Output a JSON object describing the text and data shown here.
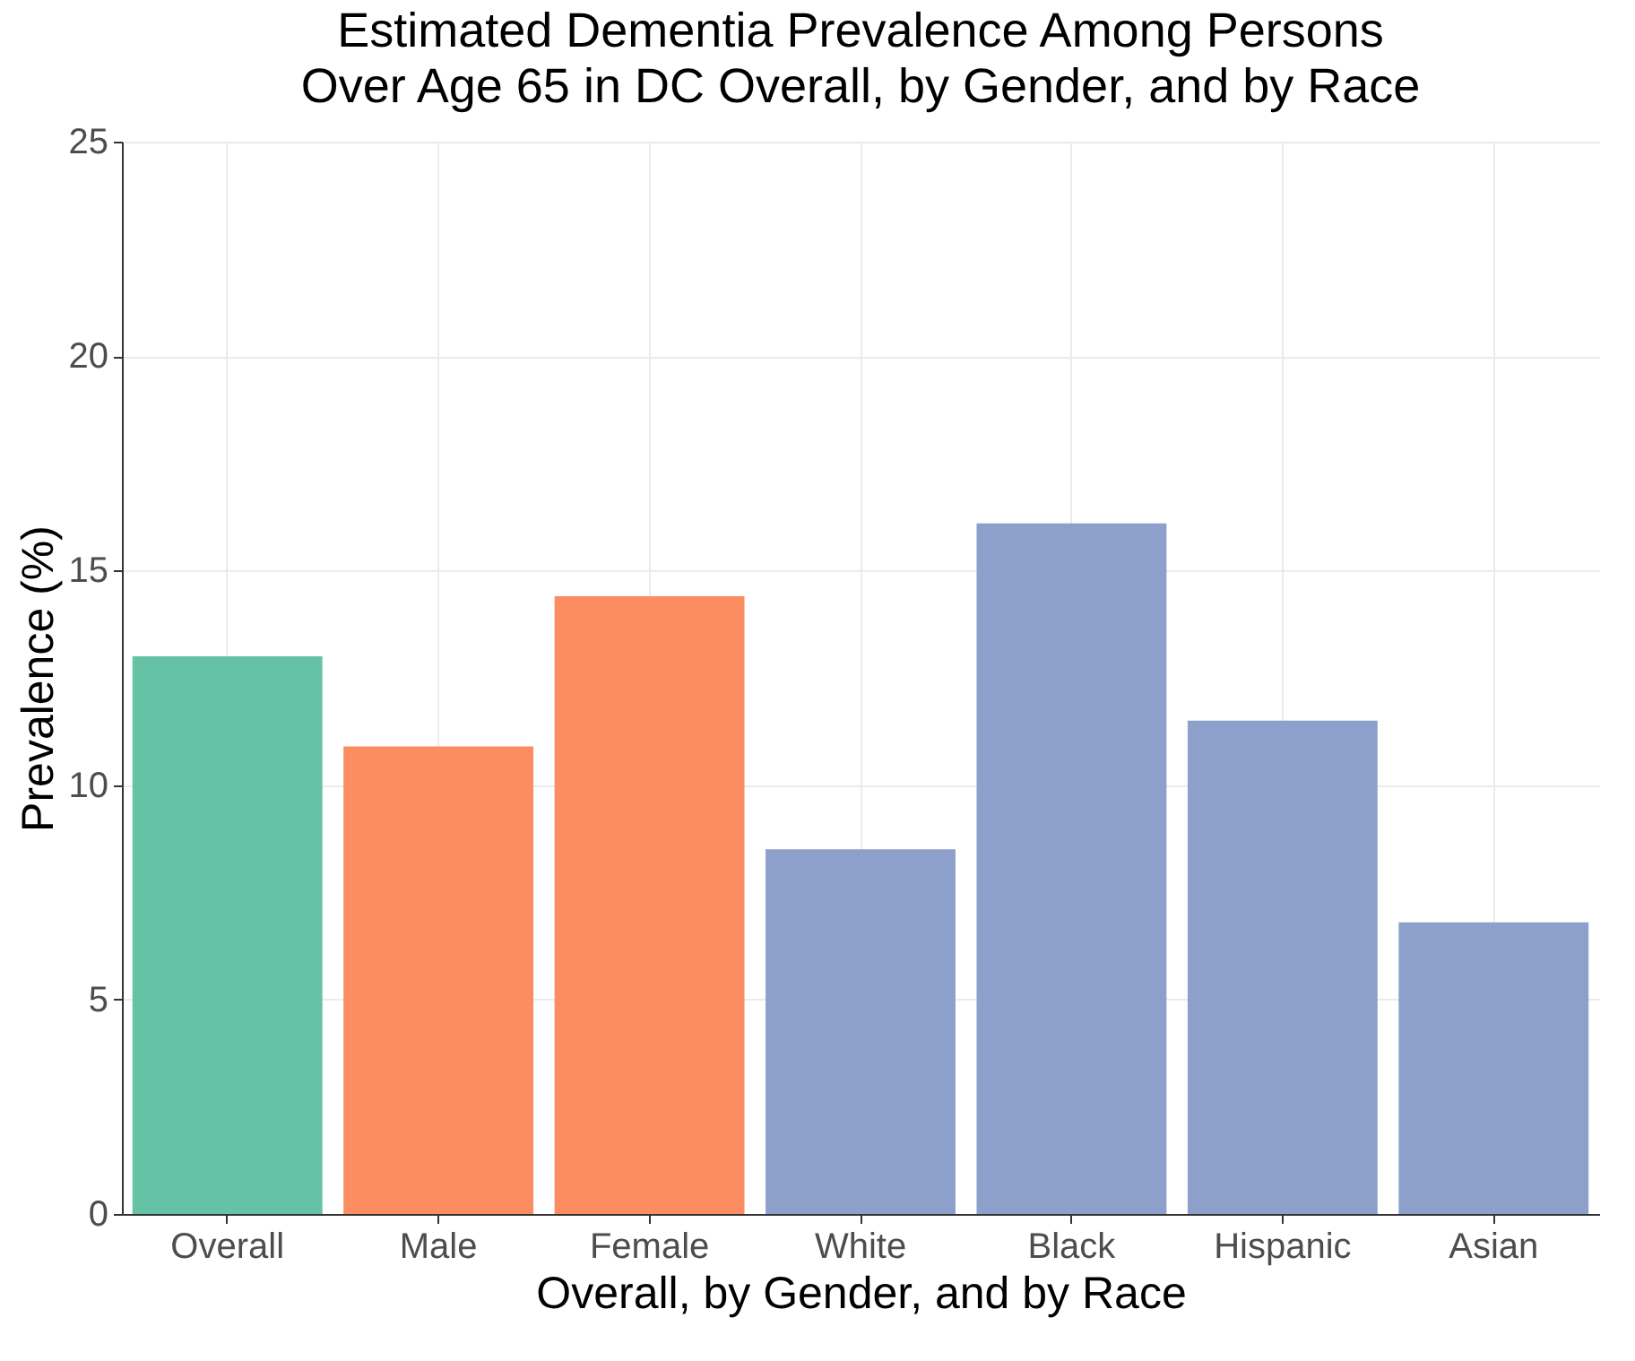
{
  "chart_data": {
    "type": "bar",
    "title": "Estimated Dementia Prevalence Among Persons\nOver Age 65 in DC Overall, by Gender, and by Race",
    "xlabel": "Overall, by Gender, and by Race",
    "ylabel": "Prevalence (%)",
    "categories": [
      "Overall",
      "Male",
      "Female",
      "White",
      "Black",
      "Hispanic",
      "Asian"
    ],
    "values": [
      13.0,
      10.9,
      14.4,
      8.5,
      16.1,
      11.5,
      6.8
    ],
    "colors": [
      "#66c2a5",
      "#fc8d62",
      "#fc8d62",
      "#8da0cb",
      "#8da0cb",
      "#8da0cb",
      "#8da0cb"
    ],
    "ylim": [
      0,
      25
    ],
    "yticks": [
      0,
      5,
      10,
      15,
      20,
      25
    ],
    "grid": true,
    "legend": false
  }
}
